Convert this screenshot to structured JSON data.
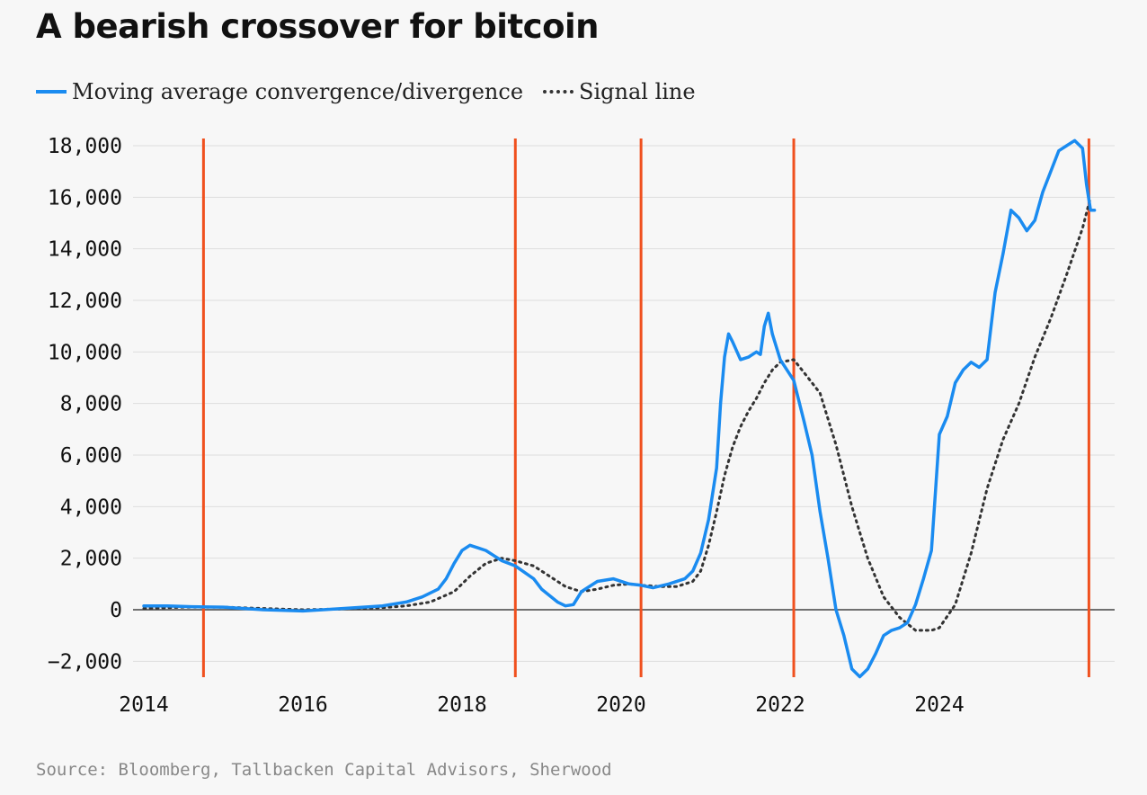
{
  "chart_data": {
    "type": "line",
    "title": "A bearish crossover for bitcoin",
    "source": "Source: Bloomberg, Tallbacken Capital Advisors, Sherwood",
    "xlim": [
      2014,
      2026
    ],
    "ylim": [
      -2600,
      18500
    ],
    "y_ticks": [
      18000,
      16000,
      14000,
      12000,
      10000,
      8000,
      6000,
      4000,
      2000,
      0,
      -2000
    ],
    "y_tick_labels": [
      "18,000",
      "16,000",
      "14,000",
      "12,000",
      "10,000",
      "8,000",
      "6,000",
      "4,000",
      "2,000",
      "0",
      "−2,000"
    ],
    "x_ticks": [
      2014,
      2016,
      2018,
      2020,
      2022,
      2024
    ],
    "x_tick_labels": [
      "2014",
      "2016",
      "2018",
      "2020",
      "2022",
      "2024"
    ],
    "crossover_years": [
      2014.75,
      2018.67,
      2020.25,
      2022.17,
      2025.88
    ],
    "series": [
      {
        "name": "Moving average convergence/divergence",
        "style": "solid",
        "color": "#1a8bf0",
        "x": [
          2014.0,
          2014.3,
          2014.6,
          2015.0,
          2015.5,
          2016.0,
          2016.5,
          2017.0,
          2017.3,
          2017.5,
          2017.7,
          2017.8,
          2017.9,
          2018.0,
          2018.1,
          2018.2,
          2018.3,
          2018.4,
          2018.5,
          2018.67,
          2018.9,
          2019.0,
          2019.2,
          2019.3,
          2019.4,
          2019.5,
          2019.7,
          2019.9,
          2020.1,
          2020.25,
          2020.4,
          2020.6,
          2020.8,
          2020.9,
          2021.0,
          2021.1,
          2021.2,
          2021.25,
          2021.3,
          2021.35,
          2021.4,
          2021.5,
          2021.6,
          2021.7,
          2021.75,
          2021.8,
          2021.85,
          2021.9,
          2022.0,
          2022.17,
          2022.3,
          2022.4,
          2022.5,
          2022.6,
          2022.7,
          2022.8,
          2022.9,
          2023.0,
          2023.1,
          2023.2,
          2023.3,
          2023.4,
          2023.5,
          2023.6,
          2023.7,
          2023.8,
          2023.9,
          2024.0,
          2024.1,
          2024.2,
          2024.3,
          2024.4,
          2024.5,
          2024.6,
          2024.7,
          2024.8,
          2024.9,
          2025.0,
          2025.1,
          2025.2,
          2025.3,
          2025.4,
          2025.5,
          2025.6,
          2025.7,
          2025.8,
          2025.85,
          2025.9,
          2025.95
        ],
        "values": [
          150,
          150,
          120,
          100,
          0,
          -50,
          50,
          150,
          300,
          500,
          800,
          1200,
          1800,
          2300,
          2500,
          2400,
          2300,
          2100,
          1900,
          1700,
          1200,
          800,
          300,
          150,
          200,
          700,
          1100,
          1200,
          1000,
          950,
          850,
          1000,
          1200,
          1500,
          2200,
          3500,
          5500,
          8000,
          9800,
          10700,
          10400,
          9700,
          9800,
          10000,
          9900,
          11000,
          11500,
          10700,
          9700,
          8900,
          7300,
          6000,
          3800,
          2000,
          0,
          -1000,
          -2300,
          -2600,
          -2300,
          -1700,
          -1000,
          -800,
          -700,
          -500,
          200,
          1200,
          2300,
          6800,
          7500,
          8800,
          9300,
          9600,
          9400,
          9700,
          12300,
          13800,
          15500,
          15200,
          14700,
          15100,
          16200,
          17000,
          17800,
          18000,
          18200,
          17900,
          16500,
          15500,
          15500
        ]
      },
      {
        "name": "Signal line",
        "style": "dotted",
        "color": "#333333",
        "x": [
          2014.0,
          2014.5,
          2015.0,
          2015.5,
          2016.0,
          2016.5,
          2017.0,
          2017.3,
          2017.6,
          2017.9,
          2018.1,
          2018.3,
          2018.5,
          2018.67,
          2018.9,
          2019.1,
          2019.3,
          2019.5,
          2019.7,
          2019.9,
          2020.1,
          2020.25,
          2020.5,
          2020.7,
          2020.9,
          2021.0,
          2021.1,
          2021.2,
          2021.3,
          2021.4,
          2021.5,
          2021.6,
          2021.7,
          2021.8,
          2021.9,
          2022.0,
          2022.17,
          2022.3,
          2022.5,
          2022.7,
          2022.9,
          2023.1,
          2023.3,
          2023.5,
          2023.7,
          2023.9,
          2024.0,
          2024.2,
          2024.4,
          2024.6,
          2024.8,
          2025.0,
          2025.2,
          2025.4,
          2025.6,
          2025.8,
          2025.9
        ],
        "values": [
          50,
          100,
          100,
          50,
          0,
          30,
          80,
          150,
          300,
          700,
          1300,
          1800,
          2000,
          1900,
          1700,
          1300,
          900,
          700,
          800,
          950,
          1000,
          950,
          900,
          900,
          1100,
          1500,
          2500,
          3800,
          5200,
          6300,
          7100,
          7700,
          8200,
          8800,
          9300,
          9600,
          9700,
          9200,
          8400,
          6400,
          4000,
          2000,
          500,
          -300,
          -800,
          -800,
          -700,
          200,
          2200,
          4700,
          6600,
          8000,
          9800,
          11300,
          13000,
          14800,
          16000
        ]
      }
    ]
  }
}
